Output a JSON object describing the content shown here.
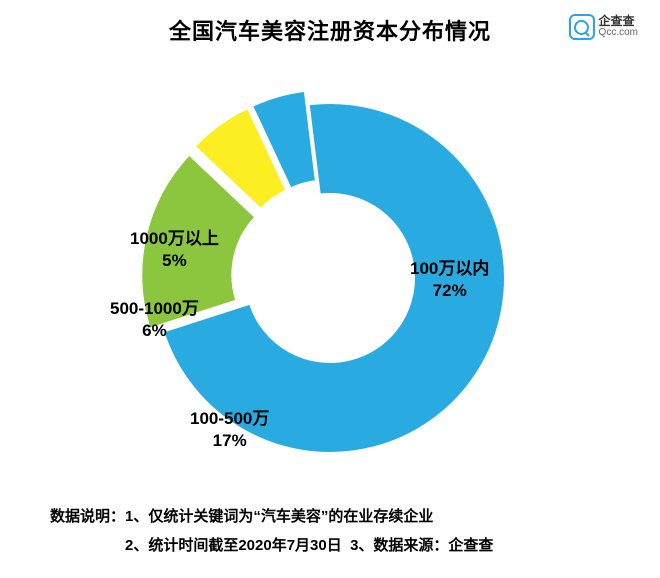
{
  "title": "全国汽车美容注册资本分布情况",
  "logo": {
    "name": "企查查",
    "url": "Qcc.com"
  },
  "chart": {
    "type": "donut",
    "background_color": "#ffffff",
    "inner_radius_ratio": 0.48,
    "outer_radius": 175,
    "explode_gap": 14,
    "slices": [
      {
        "label": "100万以内",
        "value": 72,
        "color": "#29abe2",
        "exploded": false
      },
      {
        "label": "100-500万",
        "value": 17,
        "color": "#8cc63f",
        "exploded": true
      },
      {
        "label": "500-1000万",
        "value": 6,
        "color": "#fcee21",
        "exploded": true
      },
      {
        "label": "1000万以上",
        "value": 5,
        "color": "#29abe2",
        "exploded": true
      }
    ],
    "label_font_size": 17,
    "label_font_weight": "bold",
    "label_color": "#000000",
    "slice_border_color": "#ffffff",
    "slice_border_width": 2
  },
  "footer": {
    "prefix": "数据说明：",
    "note1": "1、仅统计关键词为“汽车美容”的在业存续企业",
    "note2": "2、统计时间截至2020年7月30日",
    "note3": "3、数据来源：企查查"
  }
}
